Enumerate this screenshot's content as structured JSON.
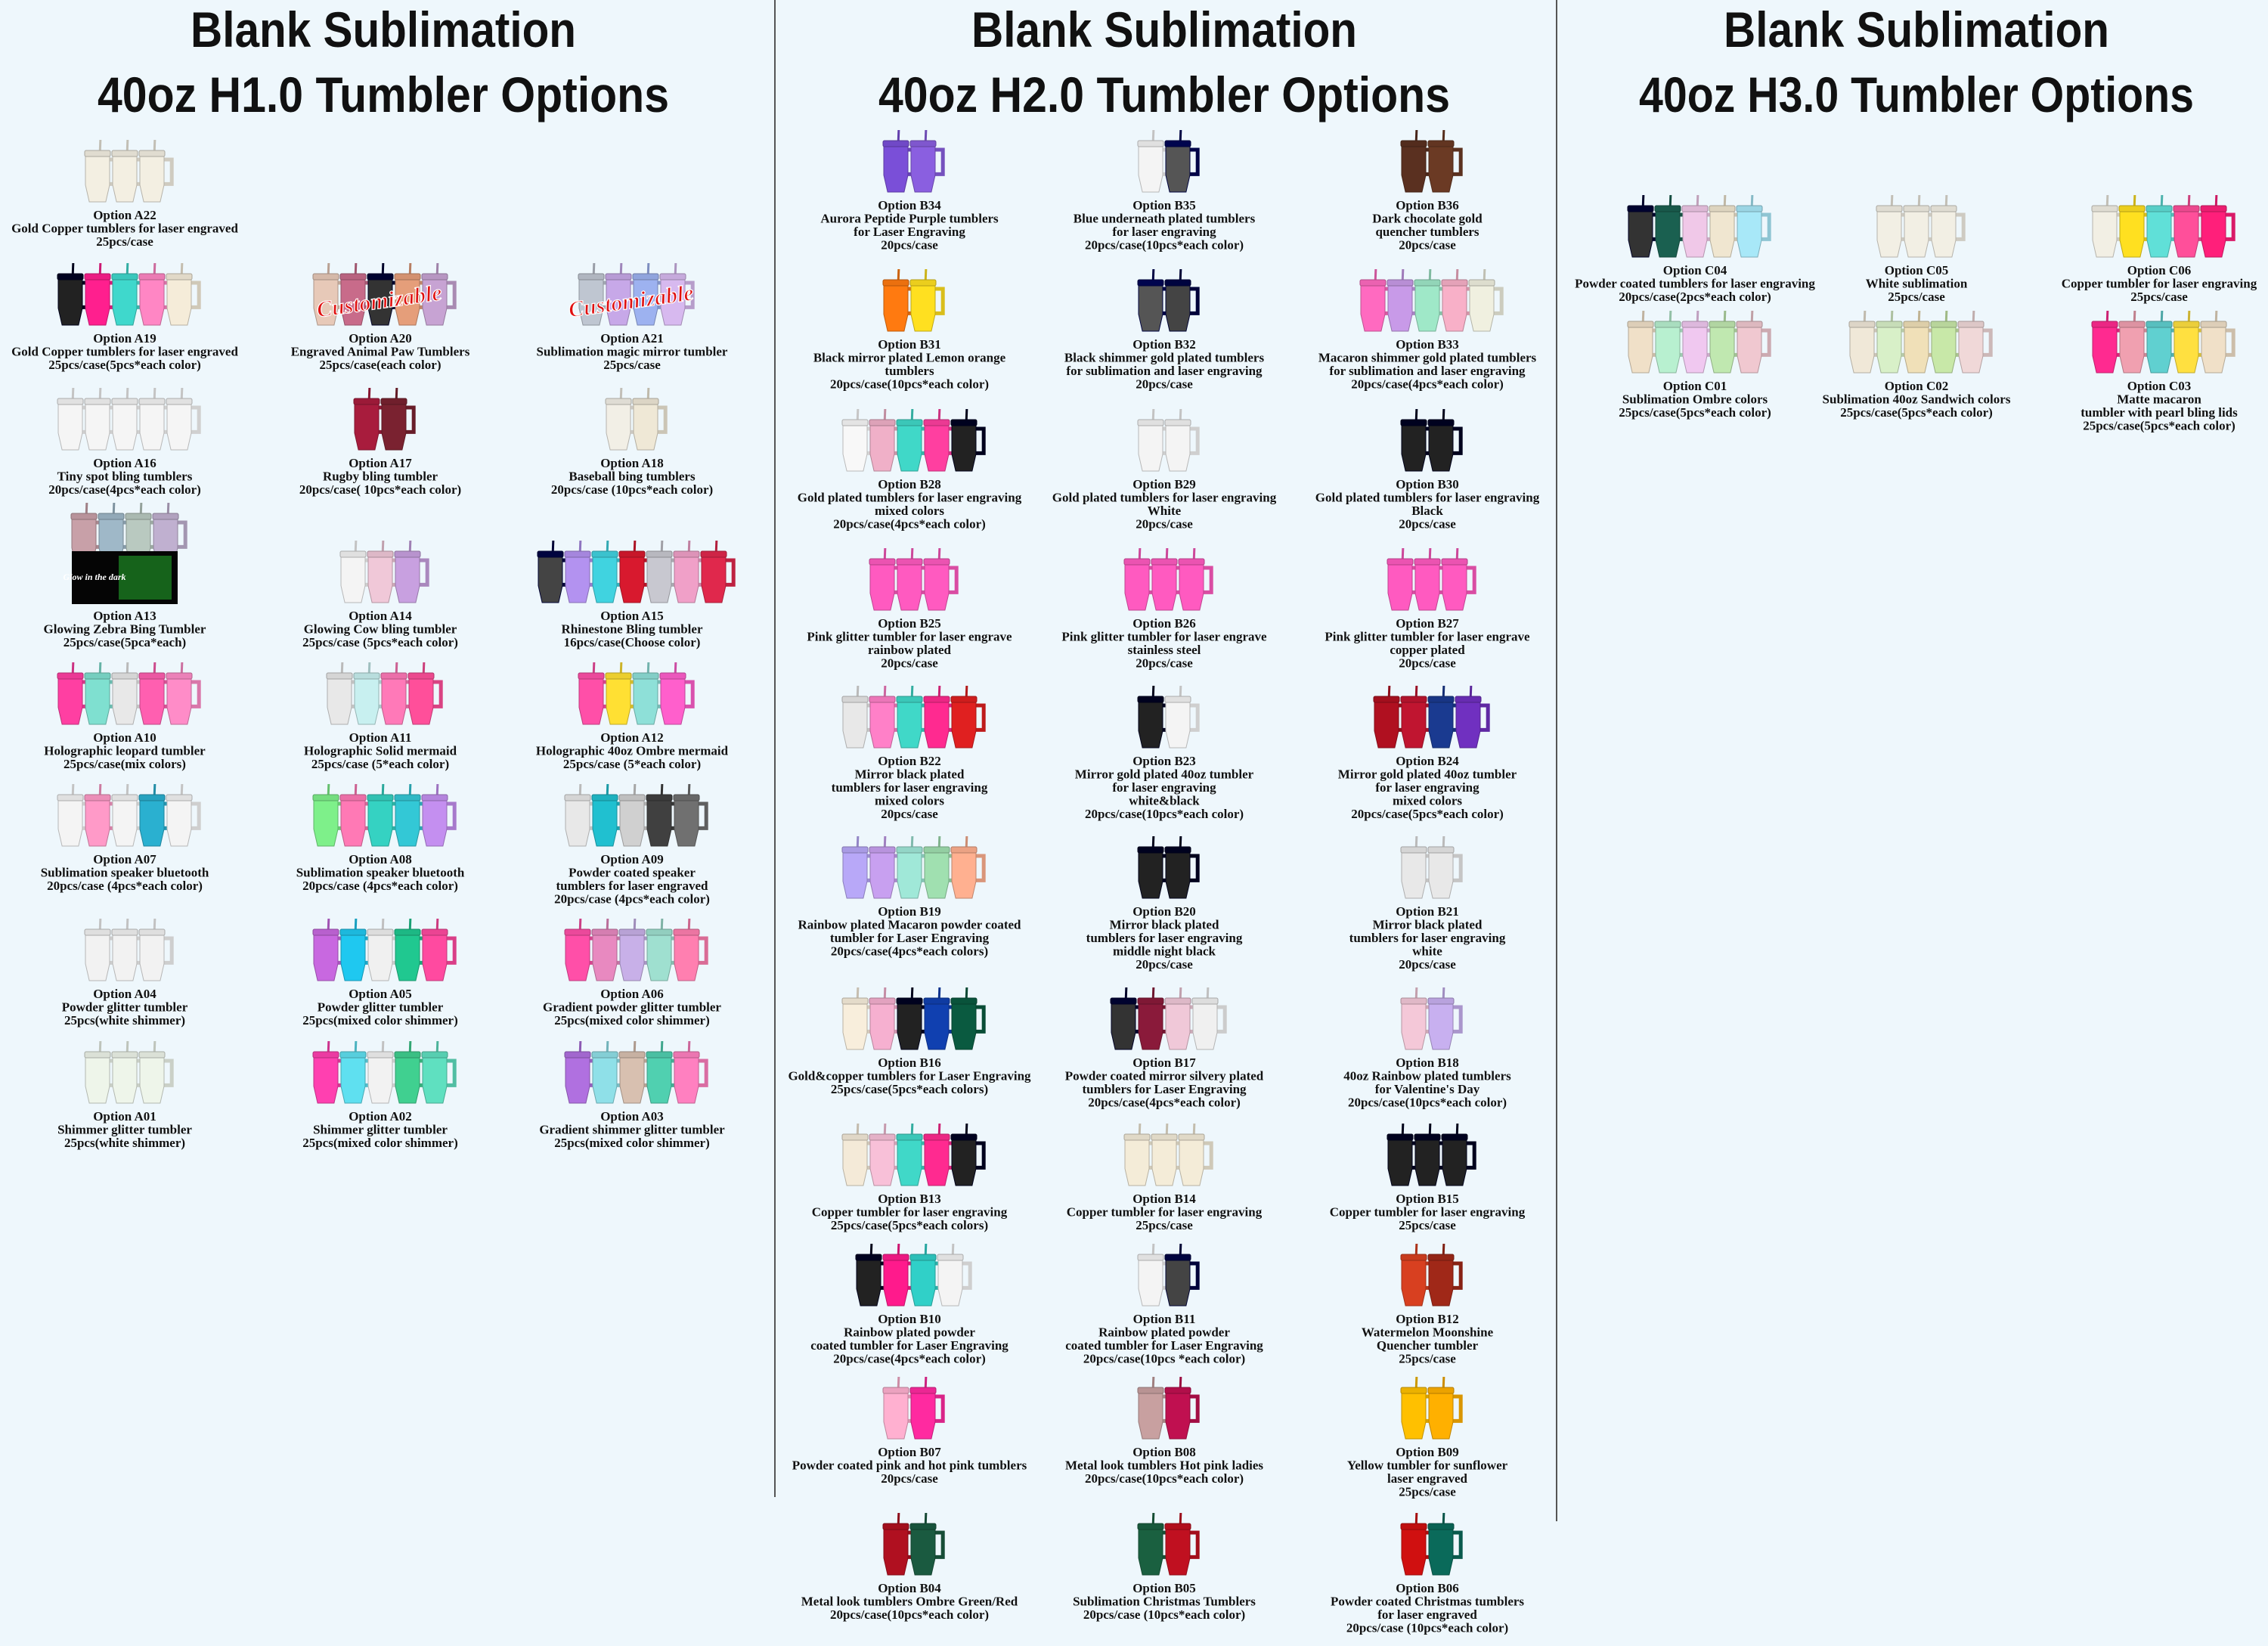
{
  "columns": [
    {
      "title": [
        "Blank Sublimation",
        "40oz H1.0 Tumbler Options"
      ],
      "rows": [
        [
          {
            "option": "Option A22",
            "lines": [
              "Gold Copper tumblers for laser engraved",
              "25pcs/case"
            ]
          }
        ],
        [
          {
            "option": "Option A19",
            "lines": [
              "Gold Copper tumblers for laser engraved",
              "25pcs/case(5pcs*each color)"
            ]
          },
          {
            "option": "Option A20",
            "lines": [
              "Engraved Animal Paw Tumblers",
              "25pcs/case(each color)"
            ],
            "badge": "Customizable"
          },
          {
            "option": "Option A21",
            "lines": [
              "Sublimation magic mirror tumbler",
              "25pcs/case"
            ],
            "badge": "Customizable"
          }
        ],
        [
          {
            "option": "Option A16",
            "lines": [
              "Tiny spot bling tumblers",
              "20pcs/case(4pcs*each color)"
            ]
          },
          {
            "option": "Option A17",
            "lines": [
              "Rugby bling tumbler",
              "20pcs/case( 10pcs*each color)"
            ]
          },
          {
            "option": "Option A18",
            "lines": [
              "Baseball bing tumblers",
              "20pcs/case (10pcs*each color)"
            ]
          }
        ],
        [
          {
            "option": "Option A13",
            "lines": [
              "Glowing Zebra Bing Tumbler",
              "25pcs/case(5pca*each)"
            ],
            "badge": "Glow in the dark"
          },
          {
            "option": "Option A14",
            "lines": [
              "Glowing Cow bling tumbler",
              "25pcs/case (5pcs*each color)"
            ]
          },
          {
            "option": "Option A15",
            "lines": [
              "Rhinestone Bling tumbler",
              "16pcs/case(Choose color)"
            ]
          }
        ],
        [
          {
            "option": "Option A10",
            "lines": [
              "Holographic leopard tumbler",
              "25pcs/case(mix colors)"
            ]
          },
          {
            "option": "Option A11",
            "lines": [
              "Holographic Solid mermaid",
              "25pcs/case (5*each color)"
            ]
          },
          {
            "option": "Option A12",
            "lines": [
              "Holographic 40oz Ombre mermaid",
              "25pcs/case (5*each color)"
            ]
          }
        ],
        [
          {
            "option": "Option A07",
            "lines": [
              "Sublimation speaker bluetooth",
              "20pcs/case (4pcs*each color)"
            ]
          },
          {
            "option": "Option A08",
            "lines": [
              "Sublimation speaker bluetooth",
              "20pcs/case (4pcs*each color)"
            ]
          },
          {
            "option": "Option A09",
            "lines": [
              "Powder coated speaker",
              "tumblers for laser engraved",
              "20pcs/case (4pcs*each color)"
            ]
          }
        ],
        [
          {
            "option": "Option A04",
            "lines": [
              "Powder glitter tumbler",
              "25pcs(white shimmer)"
            ]
          },
          {
            "option": "Option A05",
            "lines": [
              "Powder glitter tumbler",
              "25pcs(mixed color shimmer)"
            ]
          },
          {
            "option": "Option A06",
            "lines": [
              "Gradient powder glitter tumbler",
              "25pcs(mixed color shimmer)"
            ]
          }
        ],
        [
          {
            "option": "Option A01",
            "lines": [
              "Shimmer glitter tumbler",
              "25pcs(white shimmer)"
            ]
          },
          {
            "option": "Option A02",
            "lines": [
              "Shimmer glitter tumbler",
              "25pcs(mixed color shimmer)"
            ]
          },
          {
            "option": "Option A03",
            "lines": [
              "Gradient shimmer glitter tumbler",
              "25pcs(mixed color shimmer)"
            ]
          }
        ]
      ]
    },
    {
      "title": [
        "Blank Sublimation",
        "40oz H2.0 Tumbler Options"
      ],
      "rows": [
        [
          {
            "option": "Option B34",
            "lines": [
              "Aurora Peptide Purple tumblers",
              "for Laser Engraving",
              "20pcs/case"
            ]
          },
          {
            "option": "Option B35",
            "lines": [
              "Blue underneath plated tumblers",
              "for laser engraving",
              "20pcs/case(10pcs*each color)"
            ]
          },
          {
            "option": "Option B36",
            "lines": [
              "Dark chocolate gold",
              "quencher tumblers",
              "20pcs/case"
            ]
          }
        ],
        [
          {
            "option": "Option B31",
            "lines": [
              "Black mirror plated Lemon orange",
              "tumblers",
              "20pcs/case(10pcs*each color)"
            ]
          },
          {
            "option": "Option B32",
            "lines": [
              "Black shimmer gold plated tumblers",
              "for sublimation and laser engraving",
              "20pcs/case"
            ]
          },
          {
            "option": "Option B33",
            "lines": [
              "Macaron shimmer gold plated tumblers",
              "for sublimation and laser engraving",
              "20pcs/case(4pcs*each color)"
            ]
          }
        ],
        [
          {
            "option": "Option B28",
            "lines": [
              "Gold plated tumblers for laser engraving",
              "mixed colors",
              "20pcs/case(4pcs*each color)"
            ]
          },
          {
            "option": "Option B29",
            "lines": [
              "Gold plated tumblers for laser engraving",
              "White",
              "20pcs/case"
            ]
          },
          {
            "option": "Option B30",
            "lines": [
              "Gold plated tumblers for laser engraving",
              "Black",
              "20pcs/case"
            ]
          }
        ],
        [
          {
            "option": "Option B25",
            "lines": [
              "Pink glitter tumbler for laser engrave",
              "rainbow plated",
              "20pcs/case"
            ]
          },
          {
            "option": "Option B26",
            "lines": [
              "Pink glitter tumbler for laser engrave",
              "stainless steel",
              "20pcs/case"
            ]
          },
          {
            "option": "Option B27",
            "lines": [
              "Pink glitter tumbler for laser engrave",
              "copper plated",
              "20pcs/case"
            ]
          }
        ],
        [
          {
            "option": "Option B22",
            "lines": [
              "Mirror black plated",
              "tumblers for laser engraving",
              "mixed colors",
              "20pcs/case"
            ]
          },
          {
            "option": "Option B23",
            "lines": [
              "Mirror gold plated 40oz tumbler",
              "for laser engraving",
              "white&black",
              "20pcs/case(10pcs*each color)"
            ]
          },
          {
            "option": "Option B24",
            "lines": [
              "Mirror gold plated 40oz tumbler",
              "for laser engraving",
              "mixed colors",
              "20pcs/case(5pcs*each color)"
            ]
          }
        ],
        [
          {
            "option": "Option B19",
            "lines": [
              "Rainbow plated Macaron powder coated",
              "tumbler for Laser Engraving",
              "20pcs/case(4pcs*each colors)"
            ]
          },
          {
            "option": "Option B20",
            "lines": [
              "Mirror black plated",
              "tumblers for laser engraving",
              "middle night black",
              "20pcs/case"
            ]
          },
          {
            "option": "Option B21",
            "lines": [
              "Mirror black plated",
              "tumblers for laser engraving",
              "white",
              "20pcs/case"
            ]
          }
        ],
        [
          {
            "option": "Option B16",
            "lines": [
              "Gold&copper tumblers for Laser Engraving",
              "25pcs/case(5pcs*each colors)"
            ]
          },
          {
            "option": "Option B17",
            "lines": [
              "Powder coated mirror silvery plated",
              "tumblers for Laser Engraving",
              "20pcs/case(4pcs*each color)"
            ]
          },
          {
            "option": "Option B18",
            "lines": [
              "40oz Rainbow plated tumblers",
              "for Valentine's Day",
              "20pcs/case(10pcs*each color)"
            ]
          }
        ],
        [
          {
            "option": "Option B13",
            "lines": [
              "Copper tumbler for laser engraving",
              "25pcs/case(5pcs*each colors)"
            ]
          },
          {
            "option": "Option B14",
            "lines": [
              "Copper tumbler for laser engraving",
              "25pcs/case"
            ]
          },
          {
            "option": "Option B15",
            "lines": [
              "Copper tumbler for laser engraving",
              "25pcs/case"
            ]
          }
        ],
        [
          {
            "option": "Option B10",
            "lines": [
              "Rainbow plated powder",
              "coated tumbler for Laser Engraving",
              "20pcs/case(4pcs*each color)"
            ]
          },
          {
            "option": "Option B11",
            "lines": [
              "Rainbow plated powder",
              "coated tumbler for Laser Engraving",
              "20pcs/case(10pcs *each color)"
            ]
          },
          {
            "option": "Option B12",
            "lines": [
              "Watermelon Moonshine",
              "Quencher tumbler",
              "25pcs/case"
            ]
          }
        ],
        [
          {
            "option": "Option B07",
            "lines": [
              "Powder coated pink and hot pink tumblers",
              "20pcs/case"
            ]
          },
          {
            "option": "Option B08",
            "lines": [
              "Metal look tumblers Hot pink ladies",
              "20pcs/case(10pcs*each color)"
            ]
          },
          {
            "option": "Option B09",
            "lines": [
              "Yellow tumbler for sunflower",
              "laser engraved",
              "25pcs/case"
            ]
          }
        ],
        [
          {
            "option": "Option B04",
            "lines": [
              "Metal look tumblers Ombre Green/Red",
              "20pcs/case(10pcs*each color)"
            ]
          },
          {
            "option": "Option B05",
            "lines": [
              "Sublimation Christmas Tumblers",
              "20pcs/case (10pcs*each color)"
            ]
          },
          {
            "option": "Option B06",
            "lines": [
              "Powder coated Christmas tumblers",
              "for laser engraved",
              "20pcs/case (10pcs*each color)"
            ]
          }
        ]
      ]
    },
    {
      "title": [
        "Blank Sublimation",
        "40oz H3.0 Tumbler Options"
      ],
      "rows": [
        [
          {
            "option": "Option C04",
            "lines": [
              "Powder coated tumblers for laser engraving",
              "20pcs/case(2pcs*each color)"
            ]
          },
          {
            "option": "Option C05",
            "lines": [
              "White sublimation",
              "25pcs/case"
            ]
          },
          {
            "option": "Option C06",
            "lines": [
              "Copper tumbler for laser engraving",
              "25pcs/case"
            ]
          }
        ],
        [
          {
            "option": "Option C01",
            "lines": [
              "Sublimation Ombre colors",
              "25pcs/case(5pcs*each color)"
            ]
          },
          {
            "option": "Option C02",
            "lines": [
              "Sublimation 40oz Sandwich colors",
              "25pcs/case(5pcs*each color)"
            ]
          },
          {
            "option": "Option C03",
            "lines": [
              "Matte macaron",
              "tumbler with pearl bling lids",
              "25pcs/case(5pcs*each color)"
            ]
          }
        ]
      ]
    }
  ]
}
